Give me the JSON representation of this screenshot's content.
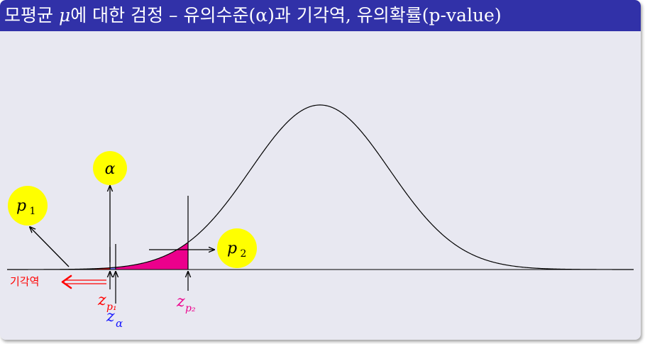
{
  "title": {
    "prefix": "모평균 ",
    "symbol": "μ",
    "suffix": "에 대한 검정 – 유의수준(α)과 기각역, 유의확률(p-value)"
  },
  "labels": {
    "alpha_bubble": "α",
    "p1_bubble": "p",
    "p1_sub": "1",
    "p2_bubble": "p",
    "p2_sub": "2",
    "rejection_region": "기각역",
    "z_p1": "z",
    "z_p1_sub": "p₁",
    "z_alpha": "z",
    "z_alpha_sub": "α",
    "z_p2": "z",
    "z_p2_sub": "p₂"
  },
  "colors": {
    "background": "#e8e8f1",
    "title_bar": "#3131a8",
    "title_text": "#ffffff",
    "rejection_fill": "#ff0000",
    "alpha_fill": "#7777ff",
    "p2_fill": "#ec008c",
    "bubble": "#ffff00",
    "curve": "#000000"
  }
}
